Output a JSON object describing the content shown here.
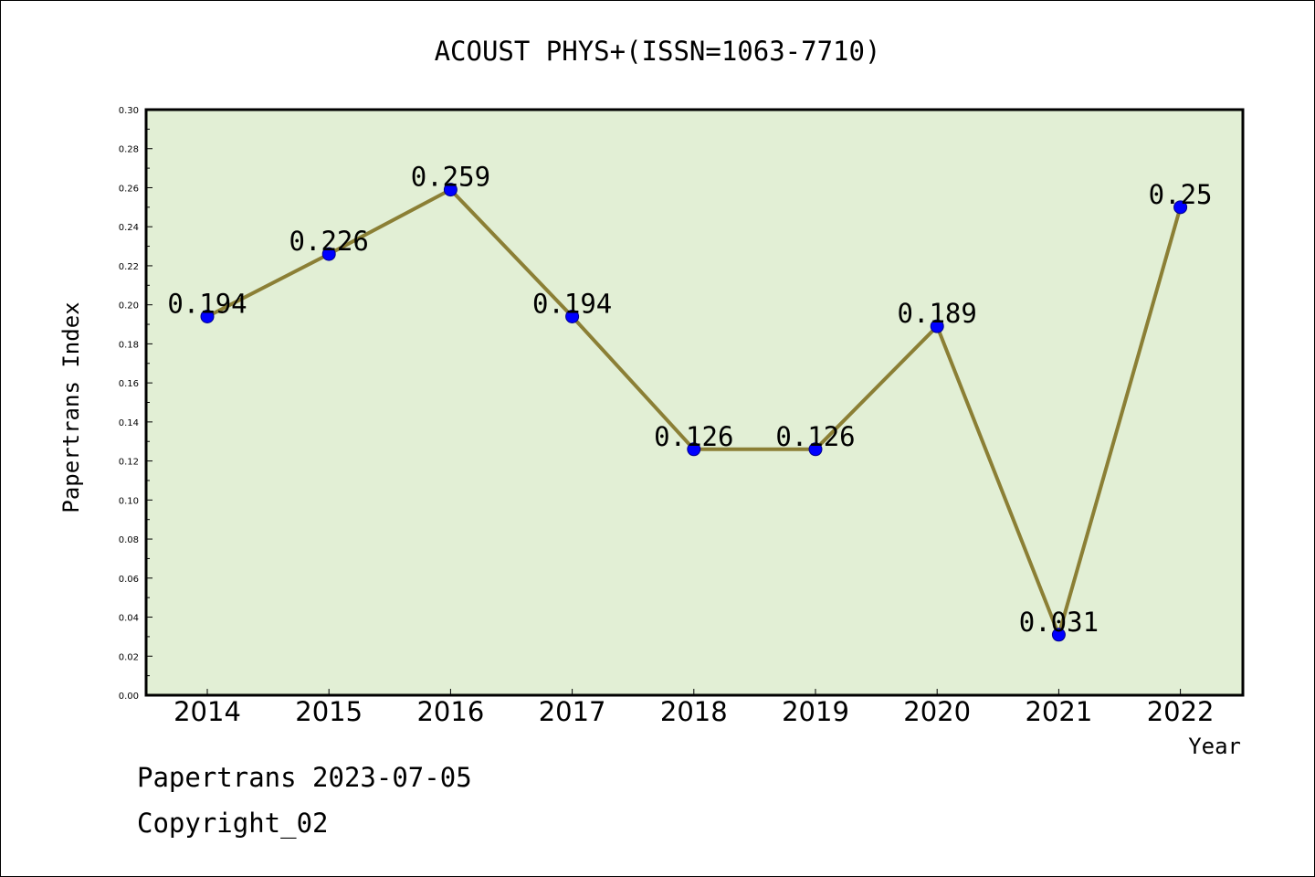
{
  "chart_data": {
    "type": "line",
    "title": "ACOUST PHYS+(ISSN=1063-7710)",
    "xlabel": "Year",
    "ylabel": "Papertrans Index",
    "categories": [
      "2014",
      "2015",
      "2016",
      "2017",
      "2018",
      "2019",
      "2020",
      "2021",
      "2022"
    ],
    "values": [
      0.194,
      0.226,
      0.259,
      0.194,
      0.126,
      0.126,
      0.189,
      0.031,
      0.25
    ],
    "data_labels": [
      "0.194",
      "0.226",
      "0.259",
      "0.194",
      "0.126",
      "0.126",
      "0.189",
      "0.031",
      "0.25"
    ],
    "ylim": [
      0,
      0.3
    ],
    "yticks": [
      "0.00",
      "0.02",
      "0.04",
      "0.06",
      "0.08",
      "0.10",
      "0.12",
      "0.14",
      "0.16",
      "0.18",
      "0.20",
      "0.22",
      "0.24",
      "0.26",
      "0.28",
      "0.30"
    ],
    "grid": false,
    "legend": "none",
    "colors": {
      "plot_background": "#e2efd5",
      "line": "#8b7f35",
      "marker": "#0000ff"
    }
  },
  "footer": {
    "line1": "Papertrans 2023-07-05",
    "line2": "Copyright_02"
  }
}
